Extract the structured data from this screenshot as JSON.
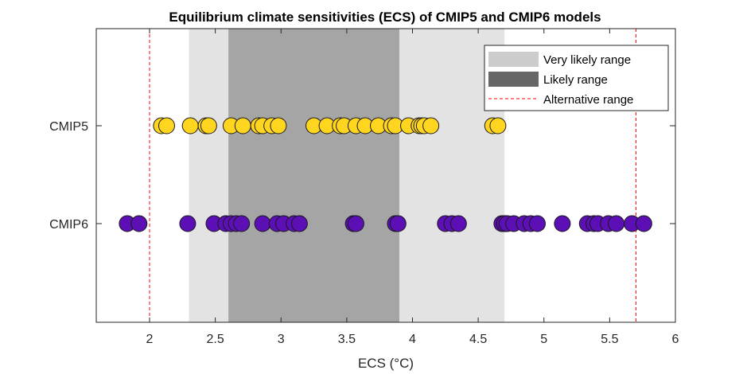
{
  "chart_data": {
    "type": "scatter",
    "title": "Equilibrium climate sensitivities (ECS) of CMIP5 and CMIP6 models",
    "xlabel": "ECS (°C)",
    "ylabel": "",
    "xlim": [
      1.6,
      6.0
    ],
    "xticks": [
      2,
      2.5,
      3,
      3.5,
      4,
      4.5,
      5,
      5.5,
      6
    ],
    "xtick_labels": [
      "2",
      "2.5",
      "3",
      "3.5",
      "4",
      "4.5",
      "5",
      "5.5",
      "6"
    ],
    "categories": [
      "CMIP5",
      "CMIP6"
    ],
    "grid": false,
    "legend_position": "top-right",
    "shaded_ranges": [
      {
        "name": "Very likely range",
        "start": 2.3,
        "end": 4.7,
        "color": "#e3e3e3",
        "legend_color": "#cccccc"
      },
      {
        "name": "Likely range",
        "start": 2.6,
        "end": 3.9,
        "color": "#a5a5a5",
        "legend_color": "#666666"
      }
    ],
    "reference_lines": [
      {
        "name": "Alternative range",
        "values": [
          2.0,
          5.7
        ],
        "color": "#ff0000",
        "style": "dashed"
      }
    ],
    "series": [
      {
        "name": "CMIP5",
        "color": "#ffd51f",
        "values": [
          2.09,
          2.13,
          2.31,
          2.43,
          2.45,
          2.62,
          2.71,
          2.83,
          2.86,
          2.93,
          2.98,
          3.25,
          3.35,
          3.45,
          3.48,
          3.57,
          3.64,
          3.74,
          3.84,
          3.87,
          3.97,
          4.05,
          4.07,
          4.09,
          4.14,
          4.61,
          4.65
        ]
      },
      {
        "name": "CMIP6",
        "color": "#5b0fb5",
        "values": [
          1.83,
          1.92,
          2.29,
          2.49,
          2.58,
          2.62,
          2.66,
          2.7,
          2.86,
          2.97,
          3.02,
          3.1,
          3.14,
          3.55,
          3.57,
          3.87,
          3.89,
          4.25,
          4.3,
          4.35,
          4.68,
          4.7,
          4.72,
          4.77,
          4.85,
          4.9,
          4.95,
          5.14,
          5.33,
          5.38,
          5.41,
          5.49,
          5.55,
          5.67,
          5.76
        ]
      }
    ],
    "legend": [
      {
        "label": "Very likely range",
        "kind": "patch"
      },
      {
        "label": "Likely range",
        "kind": "patch"
      },
      {
        "label": "Alternative range",
        "kind": "dashed-line"
      }
    ]
  }
}
